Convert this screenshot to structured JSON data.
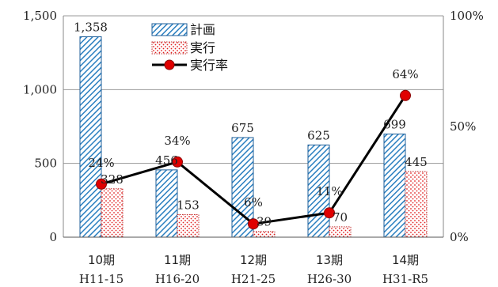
{
  "chart_data": {
    "type": "bar",
    "categories": [
      "10期",
      "11期",
      "12期",
      "13期",
      "14期"
    ],
    "category_sublabels": [
      "H11-15",
      "H16-20",
      "H21-25",
      "H26-30",
      "H31-R5"
    ],
    "series": [
      {
        "name": "計画",
        "type": "bar",
        "values": [
          1358,
          456,
          675,
          625,
          699
        ],
        "labels": [
          "1,358",
          "456",
          "675",
          "625",
          "699"
        ],
        "color": "#1f77b4"
      },
      {
        "name": "実行",
        "type": "bar",
        "values": [
          328,
          153,
          39,
          70,
          445
        ],
        "labels": [
          "328",
          "153",
          "39",
          "70",
          "445"
        ],
        "color": "#e02020"
      },
      {
        "name": "実行率",
        "type": "line",
        "axis": "right",
        "values": [
          24,
          34,
          6,
          11,
          64
        ],
        "labels": [
          "24%",
          "34%",
          "6%",
          "11%",
          "64%"
        ],
        "color": "#000000",
        "marker_color": "#e00000"
      }
    ],
    "y_left": {
      "ylim": [
        0,
        1500
      ],
      "ticks": [
        0,
        500,
        1000,
        1500
      ],
      "tick_labels": [
        "0",
        "500",
        "1,000",
        "1,500"
      ]
    },
    "y_right": {
      "ylim": [
        0,
        100
      ],
      "ticks": [
        0,
        50,
        100
      ],
      "tick_labels": [
        "0%",
        "50%",
        "100%"
      ]
    },
    "grid": true,
    "legend": "top-left-inside"
  }
}
